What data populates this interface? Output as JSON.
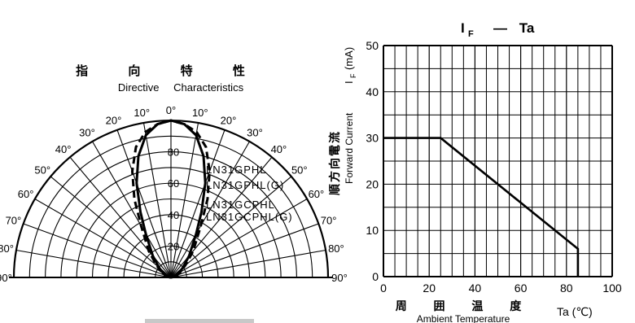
{
  "left_chart": {
    "title_cjk": "指 向 特 性",
    "title_en": "Directive Characteristics",
    "angle_labels": [
      "0°",
      "10°",
      "20°",
      "30°",
      "40°",
      "50°",
      "60°",
      "70°",
      "80°",
      "90°"
    ],
    "radial_labels": [
      "80",
      "60",
      "40",
      "20"
    ],
    "legend_lines": [
      "LN31GPHL",
      "LN31GPHL(G)",
      "LN31GCPHL",
      "LN31GCPHL(G)"
    ]
  },
  "right_chart": {
    "title_main": "I",
    "title_sub": "F",
    "title_rest": "— Ta",
    "ylabel_cjk": "順方向電流",
    "ylabel_en": "Forward Current",
    "ylabel_sym": "I",
    "ylabel_sub": "F",
    "ylabel_unit": "(mA)",
    "xlabel_cjk": "周 囲 温 度",
    "xlabel_en": "Ambient Temperature",
    "xlabel_sym": "Ta (℃)"
  },
  "chart_data": [
    {
      "type": "polar",
      "title": "Directive Characteristics",
      "angle_range_deg": [
        -90,
        90
      ],
      "angle_ticks_deg": [
        0,
        10,
        20,
        30,
        40,
        50,
        60,
        70,
        80,
        90
      ],
      "radial_ticks": [
        20,
        40,
        60,
        80
      ],
      "rmax": 100,
      "series": [
        {
          "name": "LN31GPHL",
          "style": "solid",
          "angles": [
            0,
            5,
            10,
            15,
            20,
            25,
            30,
            40,
            50,
            60,
            70,
            80,
            90
          ],
          "values": [
            100,
            98,
            92,
            80,
            64,
            46,
            32,
            18,
            10,
            6,
            3,
            1,
            0
          ]
        },
        {
          "name": "LN31GCPHL",
          "style": "dashed",
          "angles": [
            0,
            5,
            10,
            15,
            20,
            25,
            30,
            40,
            50,
            60,
            70,
            80,
            90
          ],
          "values": [
            100,
            98,
            94,
            86,
            72,
            55,
            38,
            22,
            12,
            7,
            4,
            2,
            0
          ]
        }
      ]
    },
    {
      "type": "line",
      "title": "IF — Ta",
      "xlabel": "Ambient Temperature",
      "ylabel": "Forward Current",
      "xlim": [
        0,
        100
      ],
      "ylim": [
        0,
        50
      ],
      "xticks": [
        0,
        20,
        40,
        60,
        80,
        100
      ],
      "yticks": [
        0,
        10,
        20,
        30,
        40,
        50
      ],
      "grid": true,
      "series": [
        {
          "x": [
            0,
            25,
            85,
            85
          ],
          "y": [
            30,
            30,
            6,
            0
          ]
        }
      ]
    }
  ]
}
